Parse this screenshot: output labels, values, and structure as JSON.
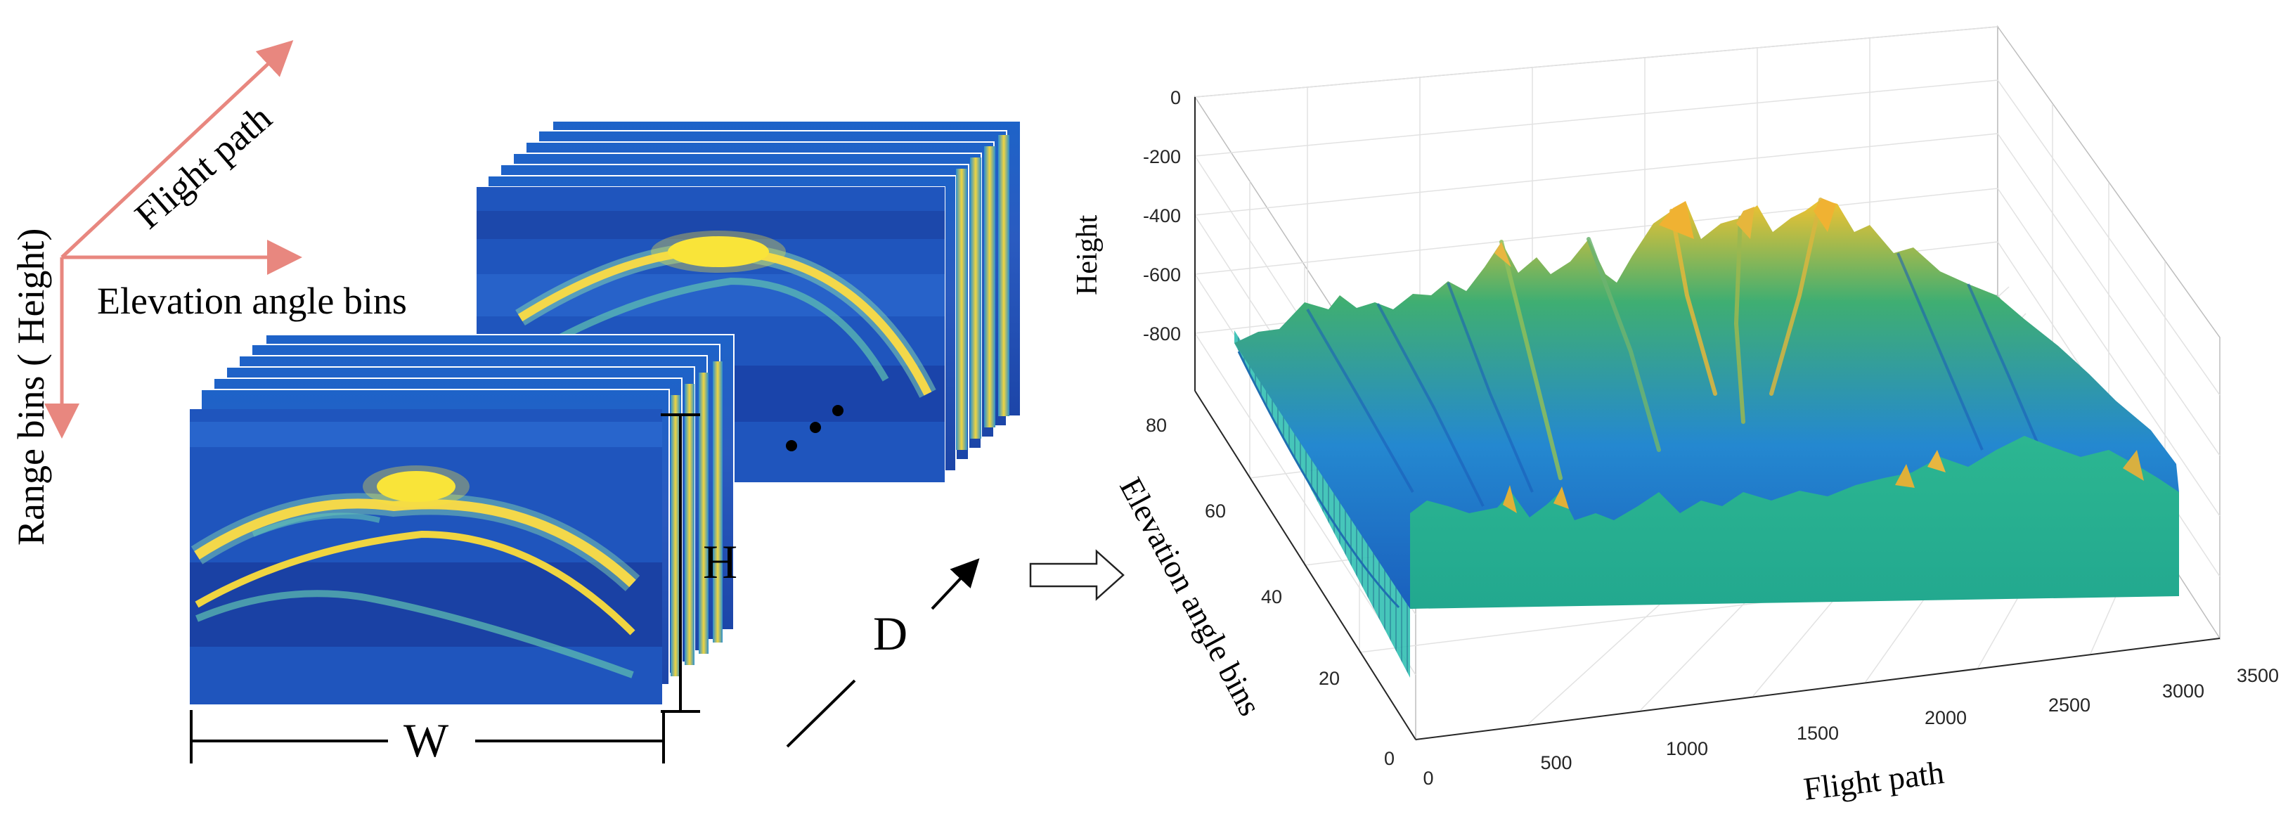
{
  "left_axes": {
    "range_label": "Range bins ( Height)",
    "flight_label": "Flight path",
    "elevation_label": "Elevation angle bins",
    "arrow_color": "#e8877f"
  },
  "cube": {
    "width_label": "W",
    "height_label": "H",
    "depth_label": "D"
  },
  "plot3d": {
    "z_label": "Height",
    "y_label": "Elevation angle bins",
    "x_label": "Flight path",
    "z_ticks": [
      "0",
      "-200",
      "-400",
      "-600",
      "-800"
    ],
    "y_ticks": [
      "80",
      "60",
      "40",
      "20",
      "0"
    ],
    "x_ticks": [
      "0",
      "500",
      "1000",
      "1500",
      "2000",
      "2500",
      "3000",
      "3500"
    ]
  },
  "colors": {
    "dark_blue": "#1f3ba0",
    "blue": "#1a73d8",
    "teal": "#21b09a",
    "yellow": "#f5e13c"
  }
}
